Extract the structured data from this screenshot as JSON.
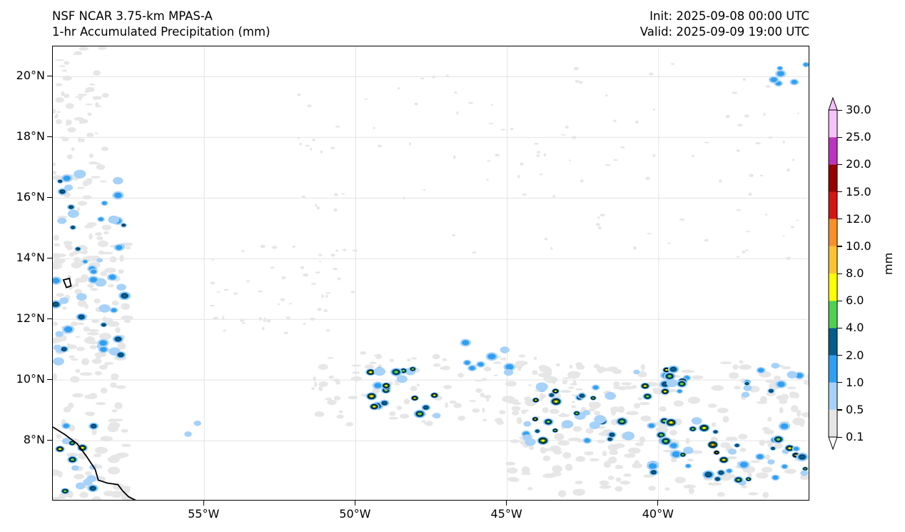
{
  "header": {
    "left_line1": "NSF NCAR 3.75-km MPAS-A",
    "left_line2": "1-hr Accumulated Precipitation (mm)",
    "right_line1": "Init: 2025-09-08 00:00 UTC",
    "right_line2": "Valid: 2025-09-09 19:00 UTC"
  },
  "map": {
    "projection": "plate-carree",
    "lon_range": [
      -60,
      -35
    ],
    "lat_range": [
      6,
      21
    ],
    "lat_ticks": [
      "20°N",
      "18°N",
      "16°N",
      "14°N",
      "12°N",
      "10°N",
      "8°N"
    ],
    "lon_ticks": [
      "55°W",
      "50°W",
      "45°W",
      "40°W"
    ],
    "gridlines": true,
    "coastline": "South American coast (Guyana/Venezuela) in lower-left, small island (Grenada area) near 13°N"
  },
  "colorbar": {
    "unit_label": "mm",
    "orientation": "vertical",
    "extend": "both",
    "levels": [
      "0.1",
      "0.5",
      "1.0",
      "2.0",
      "4.0",
      "6.0",
      "8.0",
      "10.0",
      "12.0",
      "15.0",
      "20.0",
      "25.0",
      "30.0"
    ],
    "colors": [
      "#e6e6e6",
      "#a6d1f9",
      "#2f9ff1",
      "#055d8a",
      "#4fd14f",
      "#ffff00",
      "#fbc331",
      "#f78f2a",
      "#d31612",
      "#950000",
      "#bc35be",
      "#f9c1f9"
    ],
    "under_color": "#ffffff",
    "over_color": "#f9c1f9"
  }
}
